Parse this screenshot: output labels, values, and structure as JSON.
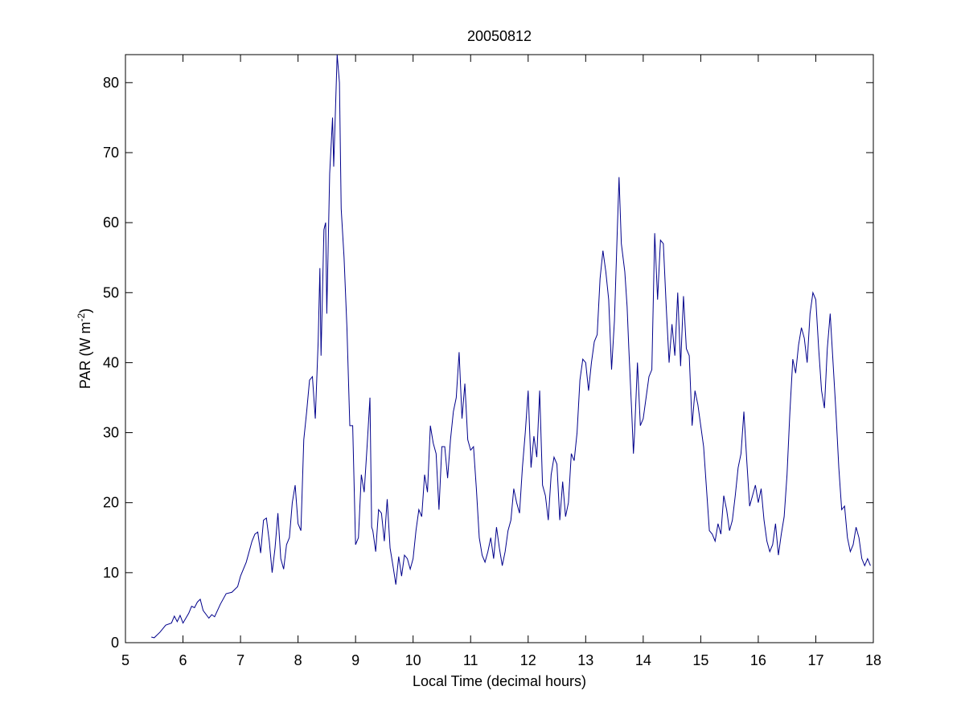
{
  "chart_data": {
    "type": "line",
    "title": "20050812",
    "xlabel": "Local Time (decimal hours)",
    "ylabel": {
      "text": "PAR (W m",
      "superscript": "-2",
      "suffix": ")"
    },
    "color": "#00008b",
    "xlim": [
      5,
      18
    ],
    "xticks": [
      5,
      6,
      7,
      8,
      9,
      10,
      11,
      12,
      13,
      14,
      15,
      16,
      17,
      18
    ],
    "ylim": [
      0,
      84
    ],
    "yticks": [
      0,
      10,
      20,
      30,
      40,
      50,
      60,
      70,
      80
    ],
    "x": [
      5.45,
      5.5,
      5.6,
      5.7,
      5.8,
      5.85,
      5.9,
      5.95,
      6.0,
      6.1,
      6.15,
      6.2,
      6.25,
      6.3,
      6.35,
      6.45,
      6.5,
      6.55,
      6.65,
      6.75,
      6.85,
      6.95,
      7.0,
      7.1,
      7.2,
      7.25,
      7.3,
      7.35,
      7.4,
      7.45,
      7.5,
      7.55,
      7.6,
      7.65,
      7.7,
      7.75,
      7.8,
      7.85,
      7.9,
      7.95,
      8.0,
      8.05,
      8.1,
      8.15,
      8.2,
      8.25,
      8.3,
      8.35,
      8.38,
      8.4,
      8.45,
      8.48,
      8.5,
      8.52,
      8.55,
      8.6,
      8.62,
      8.65,
      8.68,
      8.72,
      8.75,
      8.8,
      8.85,
      8.9,
      8.95,
      9.0,
      9.05,
      9.1,
      9.15,
      9.2,
      9.25,
      9.28,
      9.3,
      9.35,
      9.4,
      9.45,
      9.5,
      9.55,
      9.6,
      9.65,
      9.7,
      9.75,
      9.8,
      9.85,
      9.9,
      9.95,
      10.0,
      10.05,
      10.1,
      10.15,
      10.2,
      10.25,
      10.3,
      10.35,
      10.4,
      10.45,
      10.5,
      10.55,
      10.6,
      10.65,
      10.7,
      10.75,
      10.8,
      10.85,
      10.9,
      10.95,
      11.0,
      11.05,
      11.1,
      11.15,
      11.2,
      11.25,
      11.3,
      11.35,
      11.4,
      11.45,
      11.5,
      11.55,
      11.6,
      11.65,
      11.7,
      11.75,
      11.8,
      11.85,
      11.9,
      11.95,
      12.0,
      12.05,
      12.1,
      12.15,
      12.2,
      12.25,
      12.3,
      12.35,
      12.4,
      12.45,
      12.5,
      12.55,
      12.6,
      12.65,
      12.7,
      12.75,
      12.8,
      12.85,
      12.9,
      12.95,
      13.0,
      13.05,
      13.1,
      13.15,
      13.2,
      13.25,
      13.3,
      13.35,
      13.4,
      13.45,
      13.5,
      13.55,
      13.58,
      13.62,
      13.68,
      13.72,
      13.75,
      13.8,
      13.83,
      13.85,
      13.9,
      13.95,
      14.0,
      14.05,
      14.1,
      14.15,
      14.2,
      14.25,
      14.3,
      14.35,
      14.4,
      14.45,
      14.5,
      14.55,
      14.6,
      14.65,
      14.7,
      14.75,
      14.8,
      14.85,
      14.9,
      14.95,
      15.0,
      15.05,
      15.1,
      15.15,
      15.2,
      15.25,
      15.3,
      15.35,
      15.4,
      15.45,
      15.5,
      15.55,
      15.6,
      15.65,
      15.7,
      15.75,
      15.8,
      15.85,
      15.9,
      15.95,
      16.0,
      16.05,
      16.1,
      16.15,
      16.2,
      16.25,
      16.3,
      16.35,
      16.4,
      16.45,
      16.5,
      16.55,
      16.6,
      16.65,
      16.7,
      16.75,
      16.8,
      16.85,
      16.9,
      16.95,
      17.0,
      17.05,
      17.1,
      17.15,
      17.2,
      17.25,
      17.3,
      17.35,
      17.4,
      17.45,
      17.5,
      17.55,
      17.6,
      17.65,
      17.7,
      17.75,
      17.8,
      17.85,
      17.9,
      17.95
    ],
    "values": [
      0.8,
      0.7,
      1.5,
      2.5,
      2.8,
      3.8,
      3.0,
      3.9,
      2.8,
      4.2,
      5.2,
      5.0,
      5.8,
      6.2,
      4.6,
      3.5,
      4.0,
      3.7,
      5.5,
      7.0,
      7.2,
      8.0,
      9.5,
      11.5,
      14.5,
      15.5,
      15.8,
      12.8,
      17.5,
      17.8,
      14.5,
      10.0,
      13.5,
      18.5,
      12.0,
      10.5,
      14.0,
      15.0,
      20.0,
      22.5,
      17.0,
      16.0,
      29.0,
      33.0,
      37.5,
      38.0,
      32.0,
      43.0,
      53.5,
      41.0,
      59.0,
      60.0,
      47.0,
      55.0,
      67.0,
      75.0,
      68.0,
      76.0,
      84.0,
      80.0,
      62.0,
      55.0,
      45.0,
      31.0,
      31.0,
      14.0,
      15.0,
      24.0,
      21.5,
      28.0,
      35.0,
      16.5,
      16.0,
      13.0,
      19.0,
      18.5,
      14.5,
      20.5,
      13.5,
      11.0,
      8.3,
      12.3,
      9.5,
      12.5,
      12.0,
      10.5,
      12.0,
      16.0,
      19.0,
      18.0,
      24.0,
      21.5,
      31.0,
      28.5,
      27.0,
      19.0,
      28.0,
      28.0,
      23.5,
      29.0,
      33.0,
      35.0,
      41.5,
      32.0,
      37.0,
      29.0,
      27.5,
      28.0,
      22.0,
      15.0,
      12.5,
      11.5,
      13.0,
      15.0,
      12.0,
      16.5,
      13.5,
      11.0,
      13.0,
      16.0,
      17.5,
      22.0,
      20.0,
      18.5,
      25.0,
      30.0,
      36.0,
      25.0,
      29.5,
      26.5,
      36.0,
      22.5,
      21.0,
      17.5,
      24.0,
      26.5,
      25.5,
      17.5,
      23.0,
      18.0,
      20.0,
      27.0,
      26.0,
      30.0,
      37.5,
      40.5,
      40.0,
      36.0,
      40.0,
      43.0,
      44.0,
      52.0,
      56.0,
      53.0,
      49.0,
      39.0,
      46.0,
      59.0,
      66.5,
      57.0,
      53.0,
      48.0,
      42.0,
      33.0,
      27.0,
      30.0,
      40.0,
      31.0,
      32.0,
      35.0,
      38.0,
      39.0,
      58.5,
      49.0,
      57.5,
      57.0,
      48.0,
      40.0,
      45.5,
      41.0,
      50.0,
      39.5,
      49.5,
      42.0,
      41.0,
      31.0,
      36.0,
      34.0,
      31.0,
      28.0,
      22.0,
      16.0,
      15.5,
      14.5,
      17.0,
      15.5,
      21.0,
      19.0,
      16.0,
      17.5,
      21.0,
      25.0,
      27.0,
      33.0,
      26.0,
      19.5,
      21.0,
      22.5,
      20.0,
      22.0,
      17.5,
      14.5,
      13.0,
      14.0,
      17.0,
      12.5,
      15.5,
      18.0,
      24.0,
      33.0,
      40.5,
      38.5,
      42.5,
      45.0,
      43.5,
      40.0,
      47.0,
      50.0,
      49.0,
      42.0,
      36.0,
      33.5,
      42.0,
      47.0,
      40.0,
      33.0,
      25.0,
      19.0,
      19.5,
      15.0,
      13.0,
      14.0,
      16.5,
      15.0,
      12.0,
      11.0,
      12.0,
      11.0
    ]
  }
}
